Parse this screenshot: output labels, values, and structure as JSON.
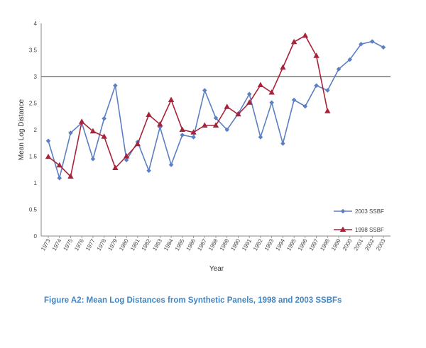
{
  "chart_data": {
    "type": "line",
    "xlabel": "Year",
    "ylabel": "Mean Log Distance",
    "ylim": [
      0,
      4
    ],
    "yticks": [
      "0",
      "0.5",
      "1",
      "1.5",
      "2",
      "2.5",
      "3",
      "3.5",
      "4"
    ],
    "reference_line": 3,
    "grid": false,
    "legend_position": "right",
    "categories": [
      "1973",
      "1974",
      "1975",
      "1976",
      "1977",
      "1978",
      "1979",
      "1980",
      "1981",
      "1982",
      "1983",
      "1984",
      "1985",
      "1986",
      "1987",
      "1988",
      "1989",
      "1990",
      "1991",
      "1992",
      "1993",
      "1994",
      "1995",
      "1996",
      "1997",
      "1998",
      "1999",
      "2000",
      "2001",
      "2002",
      "2003"
    ],
    "series": [
      {
        "name": "2003 SSBF",
        "color": "#5b7fc4",
        "marker": "diamond",
        "values": [
          1.79,
          1.09,
          1.94,
          2.13,
          1.45,
          2.21,
          2.83,
          1.43,
          1.77,
          1.23,
          2.05,
          1.34,
          1.9,
          1.86,
          2.74,
          2.22,
          2.0,
          2.3,
          2.67,
          1.86,
          2.51,
          1.74,
          2.56,
          2.44,
          2.83,
          2.74,
          3.14,
          3.32,
          3.61,
          3.66,
          3.55
        ]
      },
      {
        "name": "1998 SSBF",
        "color": "#a8233a",
        "marker": "triangle",
        "values": [
          1.49,
          1.33,
          1.12,
          2.15,
          1.97,
          1.87,
          1.28,
          1.5,
          1.73,
          2.28,
          2.1,
          2.56,
          2.0,
          1.95,
          2.08,
          2.08,
          2.43,
          2.29,
          2.51,
          2.84,
          2.7,
          3.17,
          3.65,
          3.77,
          3.39,
          2.35,
          null,
          null,
          null,
          null,
          null
        ]
      }
    ]
  },
  "caption": "Figure A2:  Mean Log Distances from Synthetic Panels, 1998 and 2003 SSBFs"
}
